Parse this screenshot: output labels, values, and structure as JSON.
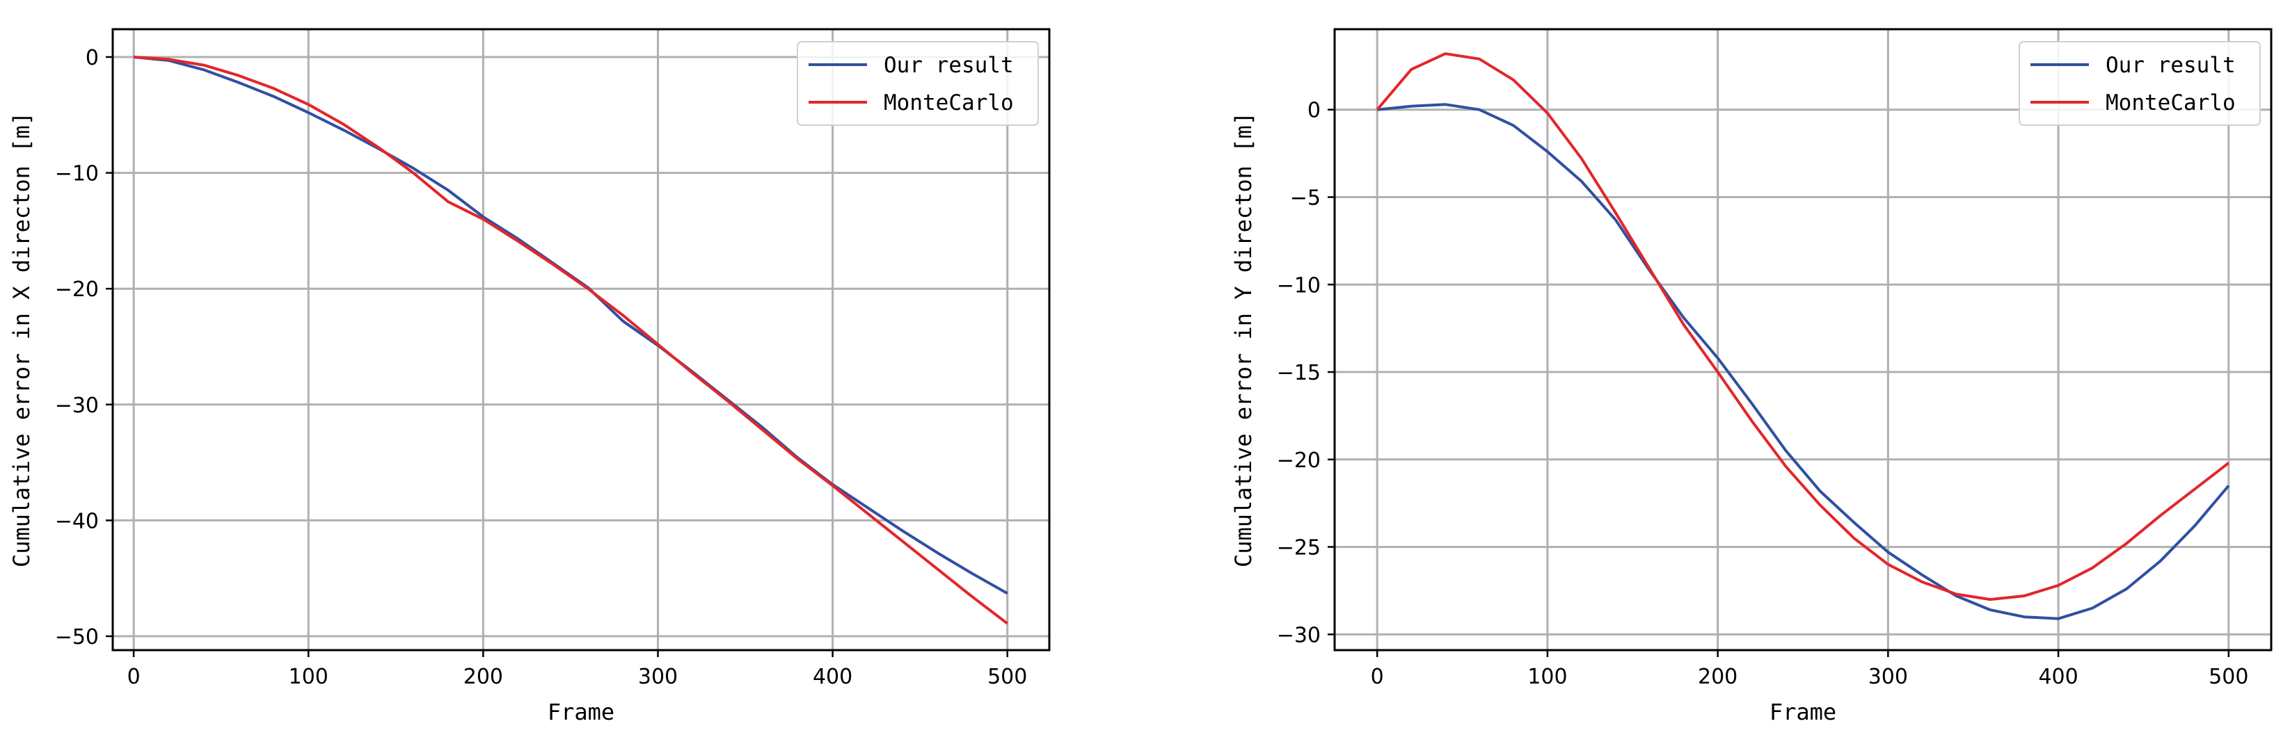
{
  "chart_data": [
    {
      "type": "line",
      "xlabel": "Frame",
      "ylabel": "Cumulative error in X directon [m]",
      "xlim": [
        -12,
        524
      ],
      "ylim": [
        -51.2,
        2.4
      ],
      "xticks": [
        0,
        100,
        200,
        300,
        400,
        500
      ],
      "yticks": [
        0,
        -10,
        -20,
        -30,
        -40,
        -50
      ],
      "grid": true,
      "legend_position": "top-right",
      "series": [
        {
          "name": "Our result",
          "color": "#3050a0",
          "x": [
            0,
            20,
            40,
            60,
            80,
            100,
            120,
            140,
            160,
            180,
            200,
            220,
            240,
            260,
            280,
            300,
            320,
            340,
            360,
            380,
            400,
            420,
            440,
            460,
            480,
            500
          ],
          "y": [
            0,
            -0.3,
            -1.1,
            -2.2,
            -3.4,
            -4.8,
            -6.3,
            -7.9,
            -9.6,
            -11.5,
            -13.8,
            -15.7,
            -17.8,
            -19.9,
            -22.8,
            -24.9,
            -27.2,
            -29.6,
            -32.0,
            -34.6,
            -36.9,
            -38.9,
            -40.9,
            -42.8,
            -44.6,
            -46.3
          ]
        },
        {
          "name": "MonteCarlo",
          "color": "#e3262a",
          "x": [
            0,
            20,
            40,
            60,
            80,
            100,
            120,
            140,
            160,
            180,
            200,
            220,
            240,
            260,
            280,
            300,
            320,
            340,
            360,
            380,
            400,
            420,
            440,
            460,
            480,
            500
          ],
          "y": [
            0,
            -0.2,
            -0.7,
            -1.6,
            -2.7,
            -4.1,
            -5.8,
            -7.8,
            -10.0,
            -12.5,
            -14.0,
            -15.9,
            -17.9,
            -20.0,
            -22.3,
            -24.8,
            -27.3,
            -29.7,
            -32.2,
            -34.7,
            -37.0,
            -39.4,
            -41.8,
            -44.2,
            -46.6,
            -48.9
          ]
        }
      ]
    },
    {
      "type": "line",
      "xlabel": "Frame",
      "ylabel": "Cumulative error in Y directon [m]",
      "xlim": [
        -25,
        525
      ],
      "ylim": [
        -30.9,
        4.6
      ],
      "xticks": [
        0,
        100,
        200,
        300,
        400,
        500
      ],
      "yticks": [
        0,
        -5,
        -10,
        -15,
        -20,
        -25,
        -30
      ],
      "grid": true,
      "legend_position": "top-right",
      "series": [
        {
          "name": "Our result",
          "color": "#3050a0",
          "x": [
            0,
            20,
            40,
            60,
            80,
            100,
            120,
            140,
            160,
            180,
            200,
            220,
            240,
            260,
            280,
            300,
            320,
            340,
            360,
            380,
            400,
            420,
            440,
            460,
            480,
            500
          ],
          "y": [
            0,
            0.2,
            0.3,
            0.0,
            -0.9,
            -2.4,
            -4.1,
            -6.3,
            -9.2,
            -11.9,
            -14.2,
            -16.8,
            -19.5,
            -21.8,
            -23.6,
            -25.3,
            -26.6,
            -27.8,
            -28.6,
            -29.0,
            -29.1,
            -28.5,
            -27.4,
            -25.8,
            -23.8,
            -21.5
          ]
        },
        {
          "name": "MonteCarlo",
          "color": "#e3262a",
          "x": [
            0,
            20,
            40,
            60,
            80,
            100,
            120,
            140,
            160,
            180,
            200,
            220,
            240,
            260,
            280,
            300,
            320,
            340,
            360,
            380,
            400,
            420,
            440,
            460,
            480,
            500
          ],
          "y": [
            0,
            2.3,
            3.2,
            2.9,
            1.7,
            -0.2,
            -2.8,
            -5.9,
            -9.1,
            -12.3,
            -15.0,
            -17.8,
            -20.4,
            -22.6,
            -24.5,
            -26.0,
            -27.0,
            -27.7,
            -28.0,
            -27.8,
            -27.2,
            -26.2,
            -24.8,
            -23.2,
            -21.7,
            -20.2
          ]
        }
      ]
    }
  ]
}
